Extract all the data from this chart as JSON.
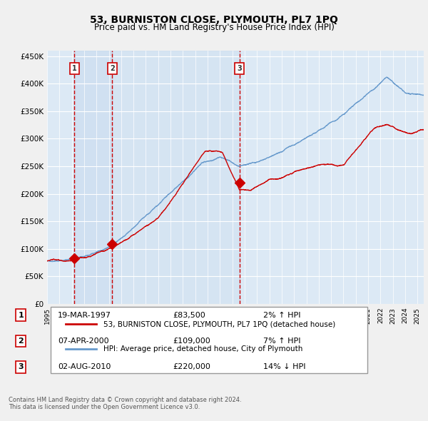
{
  "title": "53, BURNISTON CLOSE, PLYMOUTH, PL7 1PQ",
  "subtitle": "Price paid vs. HM Land Registry's House Price Index (HPI)",
  "bg_color": "#dce9f5",
  "plot_bg_color": "#dce9f5",
  "grid_color": "#ffffff",
  "legend_line1": "53, BURNISTON CLOSE, PLYMOUTH, PL7 1PQ (detached house)",
  "legend_line2": "HPI: Average price, detached house, City of Plymouth",
  "footer1": "Contains HM Land Registry data © Crown copyright and database right 2024.",
  "footer2": "This data is licensed under the Open Government Licence v3.0.",
  "transactions": [
    {
      "num": 1,
      "date": "19-MAR-1997",
      "price": 83500,
      "hpi_pct": "2%",
      "dir": "↑",
      "x_year": 1997.21
    },
    {
      "num": 2,
      "date": "07-APR-2000",
      "price": 109000,
      "hpi_pct": "7%",
      "dir": "↑",
      "x_year": 2000.27
    },
    {
      "num": 3,
      "date": "02-AUG-2010",
      "price": 220000,
      "hpi_pct": "14%",
      "dir": "↓",
      "x_year": 2010.58
    }
  ],
  "ylim": [
    0,
    460000
  ],
  "xlim_start": 1995.0,
  "xlim_end": 2025.5,
  "yticks": [
    0,
    50000,
    100000,
    150000,
    200000,
    250000,
    300000,
    350000,
    400000,
    450000
  ],
  "ytick_labels": [
    "£0",
    "£50K",
    "£100K",
    "£150K",
    "£200K",
    "£250K",
    "£300K",
    "£350K",
    "£400K",
    "£450K"
  ],
  "red_line_color": "#cc0000",
  "blue_line_color": "#6699cc",
  "marker_color": "#cc0000",
  "vline_color": "#cc0000",
  "shade_color": "#c5d9ee",
  "label_box_color": "#ffffff",
  "label_box_edge": "#cc0000"
}
